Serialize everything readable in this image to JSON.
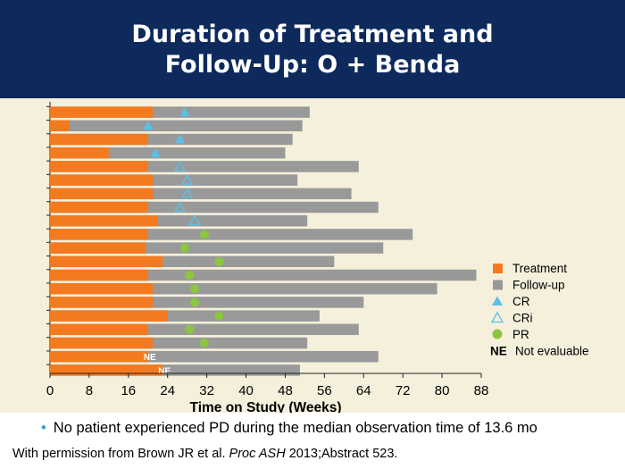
{
  "header": {
    "title_line1": "Duration of Treatment and",
    "title_line2": "Follow-Up: O + Benda"
  },
  "footer": {
    "bullet_text": "No patient experienced PD during the median observation time of 13.6 mo",
    "citation_prefix": "With permission from Brown JR et al. ",
    "citation_journal": "Proc ASH",
    "citation_suffix": " 2013;Abstract 523."
  },
  "colors": {
    "header_bg": "#0e2a5c",
    "plot_bg": "#f4f0dc",
    "treatment": "#f47a20",
    "followup": "#999999",
    "cr": "#5bc0e8",
    "cri": "#5bc0e8",
    "pr": "#8cc63f"
  },
  "chart_data": {
    "type": "bar",
    "orientation": "horizontal-stacked-swimmer",
    "xlabel": "Time on Study (Weeks)",
    "xlim": [
      0,
      88
    ],
    "xticks": [
      0,
      8,
      16,
      24,
      32,
      40,
      48,
      56,
      64,
      72,
      80,
      88
    ],
    "legend_position": "right",
    "legend": [
      {
        "key": "treatment",
        "label": "Treatment",
        "shape": "square"
      },
      {
        "key": "followup",
        "label": "Follow-up",
        "shape": "square"
      },
      {
        "key": "cr",
        "label": "CR",
        "shape": "filled-triangle"
      },
      {
        "key": "cri",
        "label": "CRi",
        "shape": "open-triangle"
      },
      {
        "key": "pr",
        "label": "PR",
        "shape": "circle"
      },
      {
        "key": "ne",
        "label": "Not evaluable",
        "shape": "text",
        "symbol": "NE"
      }
    ],
    "patients": [
      {
        "treatment": 21,
        "total": 53,
        "response": "CR",
        "response_week": 27.5
      },
      {
        "treatment": 4,
        "total": 51.5,
        "response": "CR",
        "response_week": 20
      },
      {
        "treatment": 20,
        "total": 49.5,
        "response": "CR",
        "response_week": 26.5
      },
      {
        "treatment": 12,
        "total": 48,
        "response": "CR",
        "response_week": 21.5
      },
      {
        "treatment": 20,
        "total": 63,
        "response": "CRi",
        "response_week": 26.5
      },
      {
        "treatment": 21,
        "total": 50.5,
        "response": "CRi",
        "response_week": 28
      },
      {
        "treatment": 21,
        "total": 61.5,
        "response": "CRi",
        "response_week": 28
      },
      {
        "treatment": 20,
        "total": 67,
        "response": "CRi",
        "response_week": 26.5
      },
      {
        "treatment": 22,
        "total": 52.5,
        "response": "CRi",
        "response_week": 29.5
      },
      {
        "treatment": 20,
        "total": 74,
        "response": "PR",
        "response_week": 31.5
      },
      {
        "treatment": 19.5,
        "total": 68,
        "response": "PR",
        "response_week": 27.5
      },
      {
        "treatment": 23,
        "total": 58,
        "response": "PR",
        "response_week": 34.5
      },
      {
        "treatment": 20,
        "total": 87,
        "response": "PR",
        "response_week": 28.5
      },
      {
        "treatment": 21,
        "total": 79,
        "response": "PR",
        "response_week": 29.5
      },
      {
        "treatment": 21,
        "total": 64,
        "response": "PR",
        "response_week": 29.5
      },
      {
        "treatment": 24,
        "total": 55,
        "response": "PR",
        "response_week": 34.5
      },
      {
        "treatment": 20,
        "total": 63,
        "response": "PR",
        "response_week": 28.5
      },
      {
        "treatment": 21,
        "total": 52.5,
        "response": "PR",
        "response_week": 31.5
      },
      {
        "treatment": 20,
        "total": 67,
        "response": "NE",
        "response_week": null
      },
      {
        "treatment": 23,
        "total": 51,
        "response": "NE",
        "response_week": null
      }
    ]
  }
}
